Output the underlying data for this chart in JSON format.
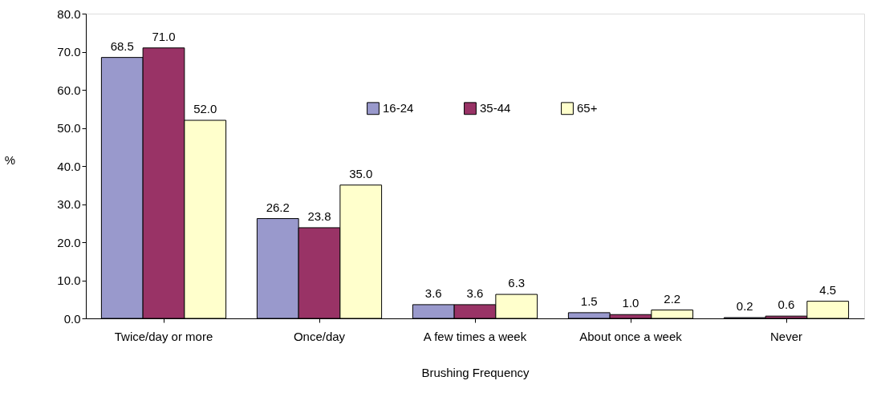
{
  "chart_data": {
    "type": "bar",
    "xlabel": "Brushing Frequency",
    "ylabel": "%",
    "categories": [
      "Twice/day or more",
      "Once/day",
      "A few times a week",
      "About once a week",
      "Never"
    ],
    "series": [
      {
        "name": "16-24",
        "color": "#9999cc",
        "values": [
          68.5,
          26.2,
          3.6,
          1.5,
          0.2
        ],
        "value_labels": [
          "68.5",
          "26.2",
          "3.6",
          "1.5",
          "0.2"
        ]
      },
      {
        "name": "35-44",
        "color": "#993366",
        "values": [
          71.0,
          23.8,
          3.6,
          1.0,
          0.6
        ],
        "value_labels": [
          "71.0",
          "23.8",
          "3.6",
          "1.0",
          "0.6"
        ]
      },
      {
        "name": "65+",
        "color": "#ffffcc",
        "values": [
          52.0,
          35.0,
          6.3,
          2.2,
          4.5
        ],
        "value_labels": [
          "52.0",
          "35.0",
          "6.3",
          "2.2",
          "4.5"
        ]
      }
    ],
    "ylim": [
      0,
      80
    ],
    "yticks": [
      {
        "value": 0,
        "label": "0.0"
      },
      {
        "value": 10,
        "label": "10.0"
      },
      {
        "value": 20,
        "label": "20.0"
      },
      {
        "value": 30,
        "label": "30.0"
      },
      {
        "value": 40,
        "label": "40.0"
      },
      {
        "value": 50,
        "label": "50.0"
      },
      {
        "value": 60,
        "label": "60.0"
      },
      {
        "value": 70,
        "label": "70.0"
      },
      {
        "value": 80,
        "label": "80.0"
      }
    ],
    "grid": false,
    "legend": "top"
  }
}
